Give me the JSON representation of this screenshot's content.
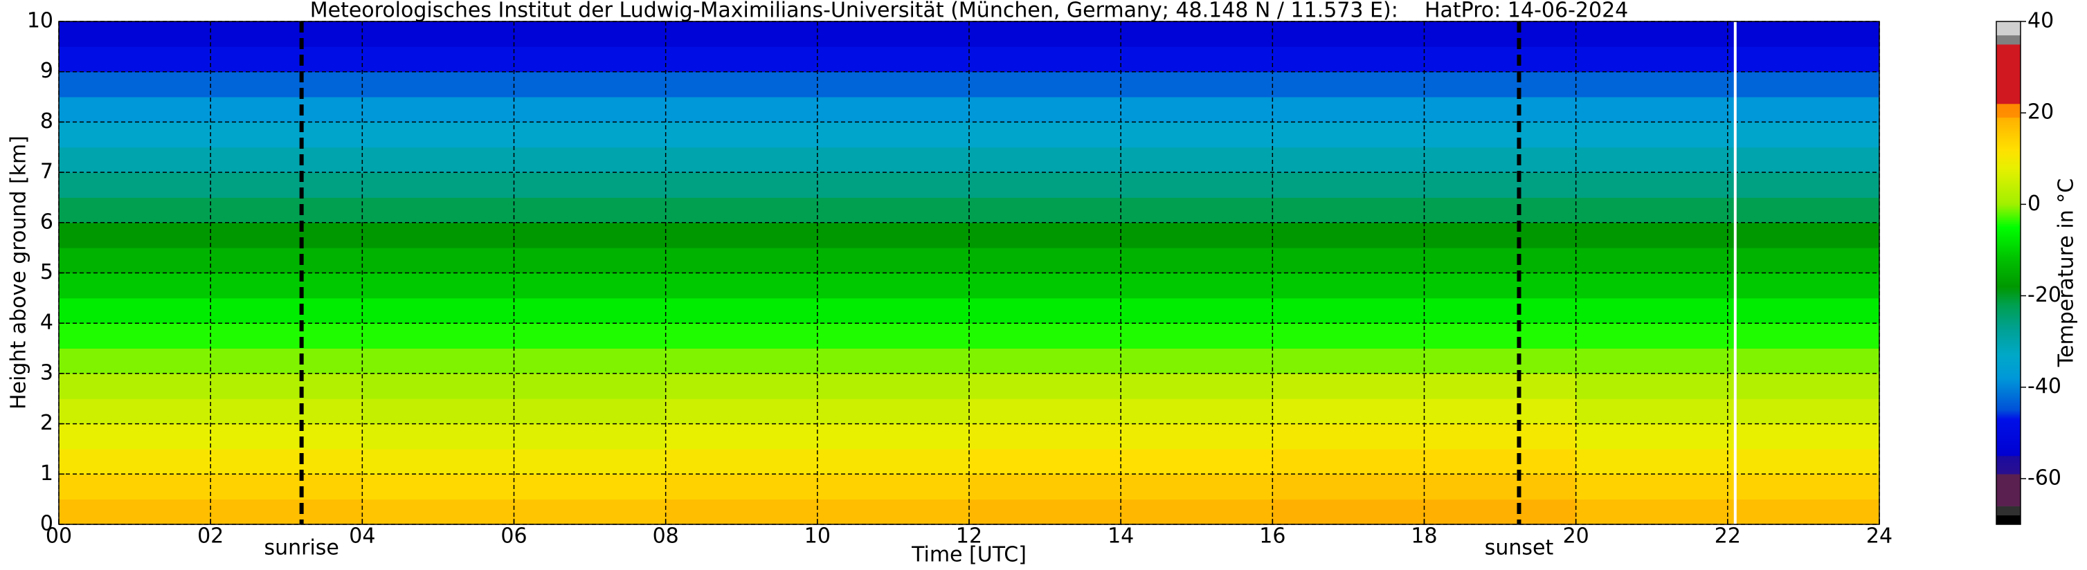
{
  "chart_data": {
    "type": "heatmap",
    "title": "Meteorologisches Institut der Ludwig-Maximilians-Universität (München, Germany; 48.148 N / 11.573 E):    HatPro: 14-06-2024",
    "xlabel": "Time [UTC]",
    "ylabel": "Height above ground [km]",
    "colorbar_label": "Temperature in °C",
    "xlim": [
      0,
      24
    ],
    "ylim": [
      0,
      10
    ],
    "xticks": [
      {
        "value": 0,
        "label": "00"
      },
      {
        "value": 2,
        "label": "02"
      },
      {
        "value": 4,
        "label": "04"
      },
      {
        "value": 6,
        "label": "06"
      },
      {
        "value": 8,
        "label": "08"
      },
      10,
      12,
      14,
      16,
      18,
      20,
      22,
      24
    ],
    "yticks": [
      0,
      1,
      2,
      3,
      4,
      5,
      6,
      7,
      8,
      9,
      10
    ],
    "grid": true,
    "xbins": [
      0,
      4,
      8,
      12,
      16,
      20,
      24
    ],
    "ybins": [
      0,
      0.5,
      1,
      1.5,
      2,
      2.5,
      3,
      3.5,
      4,
      4.5,
      5,
      5.5,
      6,
      6.5,
      7,
      7.5,
      8,
      8.5,
      9,
      9.5,
      10
    ],
    "z": [
      [
        17,
        16,
        17,
        18,
        19,
        17
      ],
      [
        14,
        13,
        14,
        15,
        16,
        14
      ],
      [
        11,
        10,
        11,
        12,
        13,
        11
      ],
      [
        8,
        7,
        8,
        9,
        10,
        8
      ],
      [
        5,
        4,
        5,
        6,
        7,
        5
      ],
      [
        2,
        1,
        2,
        3,
        4,
        2
      ],
      [
        -1,
        -1,
        -1,
        -1,
        -1,
        -1
      ],
      [
        -4,
        -4,
        -4,
        -4,
        -4,
        -4
      ],
      [
        -7,
        -7,
        -7,
        -7,
        -7,
        -7
      ],
      [
        -11,
        -11,
        -11,
        -11,
        -11,
        -11
      ],
      [
        -14,
        -14,
        -14,
        -14,
        -14,
        -14
      ],
      [
        -18,
        -18,
        -18,
        -18,
        -18,
        -18
      ],
      [
        -22,
        -22,
        -22,
        -22,
        -22,
        -22
      ],
      [
        -26,
        -26,
        -26,
        -26,
        -26,
        -26
      ],
      [
        -30,
        -30,
        -30,
        -30,
        -30,
        -30
      ],
      [
        -34,
        -34,
        -34,
        -34,
        -34,
        -34
      ],
      [
        -38,
        -38,
        -38,
        -38,
        -38,
        -38
      ],
      [
        -43,
        -43,
        -43,
        -43,
        -43,
        -43
      ],
      [
        -48,
        -48,
        -48,
        -48,
        -48,
        -48
      ],
      [
        -53,
        -53,
        -53,
        -53,
        -53,
        -53
      ]
    ],
    "clim": [
      -70,
      40
    ],
    "cticks": [
      -60,
      -40,
      -20,
      0,
      20,
      40
    ],
    "colormap": [
      [
        -70,
        "#000000"
      ],
      [
        -68,
        "#000000"
      ],
      [
        -68,
        "#303030"
      ],
      [
        -66,
        "#303030"
      ],
      [
        -66,
        "#5a2050"
      ],
      [
        -59,
        "#5a2050"
      ],
      [
        -59,
        "#2a1090"
      ],
      [
        -55,
        "#1a0aa0"
      ],
      [
        -55,
        "#0000d0"
      ],
      [
        -47,
        "#0010e8"
      ],
      [
        -45,
        "#0050d8"
      ],
      [
        -38,
        "#0098d8"
      ],
      [
        -33,
        "#00a8c8"
      ],
      [
        -27,
        "#00a090"
      ],
      [
        -22,
        "#00a050"
      ],
      [
        -18,
        "#009800"
      ],
      [
        -12,
        "#00c000"
      ],
      [
        -5,
        "#00ff00"
      ],
      [
        0,
        "#a0f000"
      ],
      [
        8,
        "#e8f000"
      ],
      [
        12,
        "#ffe000"
      ],
      [
        19,
        "#ffb000"
      ],
      [
        19,
        "#ff9000"
      ],
      [
        22,
        "#ff8800"
      ],
      [
        22,
        "#d01820"
      ],
      [
        35,
        "#d01820"
      ],
      [
        35,
        "#808080"
      ],
      [
        37,
        "#808080"
      ],
      [
        37,
        "#d0d0d0"
      ],
      [
        40,
        "#d0d0d0"
      ]
    ],
    "vlines": [
      {
        "x": 3.2,
        "label": "sunrise",
        "color": "#000000",
        "dashed": true
      },
      {
        "x": 19.25,
        "label": "sunset",
        "color": "#000000",
        "dashed": true
      },
      {
        "x": 22.1,
        "color": "#ffffff",
        "dashed": false
      }
    ]
  }
}
